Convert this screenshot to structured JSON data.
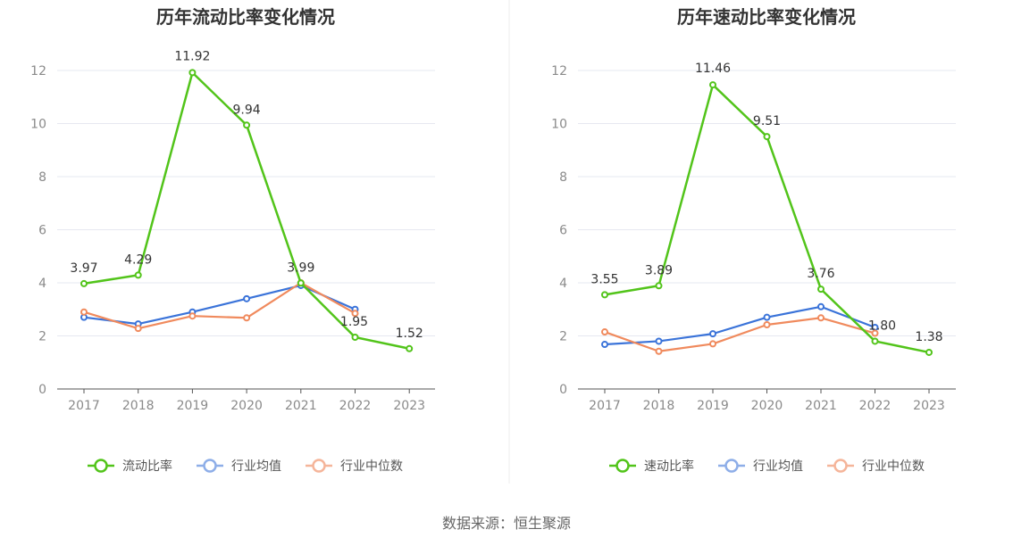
{
  "source": "数据来源：恒生聚源",
  "colors": {
    "main": "#52c41a",
    "avg": "#3a73d9",
    "median": "#f08a5d",
    "grid": "#e6e8f0",
    "axis": "#555555"
  },
  "chart_data": [
    {
      "type": "line",
      "title": "历年流动比率变化情况",
      "categories": [
        "2017",
        "2018",
        "2019",
        "2020",
        "2021",
        "2022",
        "2023"
      ],
      "ylim": [
        0,
        12
      ],
      "yticks": [
        0,
        2,
        4,
        6,
        8,
        10,
        12
      ],
      "series": [
        {
          "name": "流动比率",
          "color": "#52c41a",
          "values": [
            3.97,
            4.29,
            11.92,
            9.94,
            3.99,
            1.95,
            1.52
          ],
          "labels": [
            "3.97",
            "4.29",
            "11.92",
            "9.94",
            "3.99",
            "1.95",
            "1.52"
          ]
        },
        {
          "name": "行业均值",
          "color": "#3a73d9",
          "values": [
            2.7,
            2.45,
            2.9,
            3.4,
            3.9,
            3.0,
            null
          ]
        },
        {
          "name": "行业中位数",
          "color": "#f08a5d",
          "values": [
            2.9,
            2.28,
            2.75,
            2.68,
            4.0,
            2.85,
            null
          ]
        }
      ]
    },
    {
      "type": "line",
      "title": "历年速动比率变化情况",
      "categories": [
        "2017",
        "2018",
        "2019",
        "2020",
        "2021",
        "2022",
        "2023"
      ],
      "ylim": [
        0,
        12
      ],
      "yticks": [
        0,
        2,
        4,
        6,
        8,
        10,
        12
      ],
      "series": [
        {
          "name": "速动比率",
          "color": "#52c41a",
          "values": [
            3.55,
            3.89,
            11.46,
            9.51,
            3.76,
            1.8,
            1.38
          ],
          "labels": [
            "3.55",
            "3.89",
            "11.46",
            "9.51",
            "3.76",
            "1.80",
            "1.38"
          ]
        },
        {
          "name": "行业均值",
          "color": "#3a73d9",
          "values": [
            1.68,
            1.8,
            2.08,
            2.7,
            3.1,
            2.32,
            null
          ]
        },
        {
          "name": "行业中位数",
          "color": "#f08a5d",
          "values": [
            2.15,
            1.42,
            1.7,
            2.42,
            2.68,
            2.1,
            null
          ]
        }
      ]
    }
  ]
}
